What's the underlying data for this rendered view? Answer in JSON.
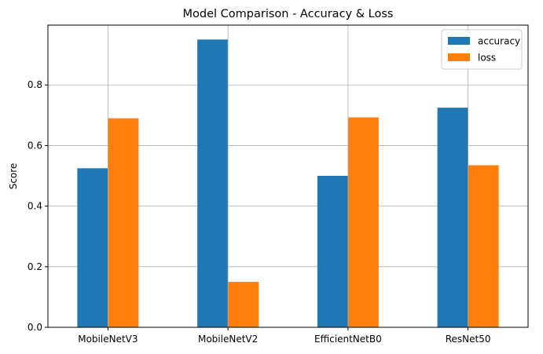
{
  "chart_data": {
    "type": "bar",
    "title": "Model Comparison - Accuracy & Loss",
    "xlabel": "",
    "ylabel": "Score",
    "categories": [
      "MobileNetV3",
      "MobileNetV2",
      "EfficientNetB0",
      "ResNet50"
    ],
    "series": [
      {
        "name": "accuracy",
        "color": "#1f77b4",
        "values": [
          0.525,
          0.95,
          0.5,
          0.725
        ]
      },
      {
        "name": "loss",
        "color": "#ff7f0e",
        "values": [
          0.69,
          0.15,
          0.693,
          0.535
        ]
      }
    ],
    "ylim": [
      0,
      0.9975
    ],
    "yticks": [
      0.0,
      0.2,
      0.4,
      0.6,
      0.8
    ],
    "ytick_labels": [
      "0.0",
      "0.2",
      "0.4",
      "0.6",
      "0.8"
    ],
    "grid": true,
    "legend": "top-right"
  }
}
